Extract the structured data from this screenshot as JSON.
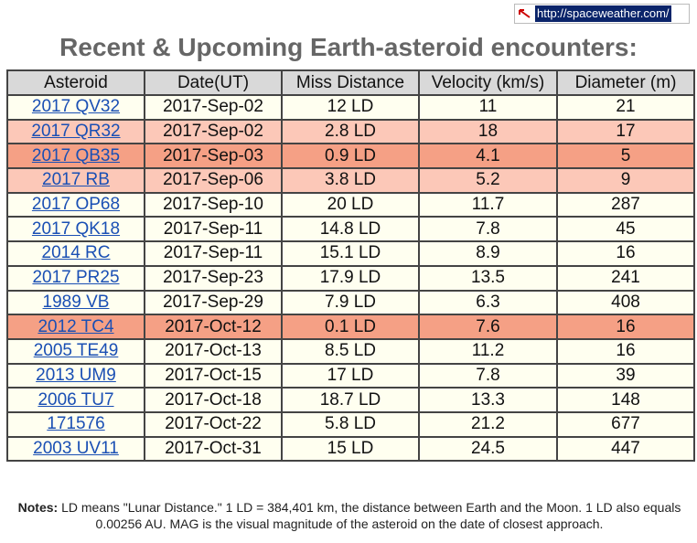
{
  "url": "http://spaceweather.com/",
  "title": "Recent & Upcoming Earth-asteroid encounters:",
  "table": {
    "headers": [
      "Asteroid",
      "Date(UT)",
      "Miss Distance",
      "Velocity (km/s)",
      "Diameter (m)"
    ],
    "rows": [
      [
        "2017 QV32",
        "2017-Sep-02",
        "12 LD",
        "11",
        "21"
      ],
      [
        "2017 QR32",
        "2017-Sep-02",
        "2.8 LD",
        "18",
        "17"
      ],
      [
        "2017 QB35",
        "2017-Sep-03",
        "0.9 LD",
        "4.1",
        "5"
      ],
      [
        "2017 RB",
        "2017-Sep-06",
        "3.8 LD",
        "5.2",
        "9"
      ],
      [
        "2017 OP68",
        "2017-Sep-10",
        "20 LD",
        "11.7",
        "287"
      ],
      [
        "2017 QK18",
        "2017-Sep-11",
        "14.8 LD",
        "7.8",
        "45"
      ],
      [
        "2014 RC",
        "2017-Sep-11",
        "15.1 LD",
        "8.9",
        "16"
      ],
      [
        "2017 PR25",
        "2017-Sep-23",
        "17.9 LD",
        "13.5",
        "241"
      ],
      [
        "1989 VB",
        "2017-Sep-29",
        "7.9 LD",
        "6.3",
        "408"
      ],
      [
        "2012 TC4",
        "2017-Oct-12",
        "0.1 LD",
        "7.6",
        "16"
      ],
      [
        "2005 TE49",
        "2017-Oct-13",
        "8.5 LD",
        "11.2",
        "16"
      ],
      [
        "2013 UM9",
        "2017-Oct-15",
        "17 LD",
        "7.8",
        "39"
      ],
      [
        "2006 TU7",
        "2017-Oct-18",
        "18.7 LD",
        "13.3",
        "148"
      ],
      [
        "171576",
        "2017-Oct-22",
        "5.8 LD",
        "21.2",
        "677"
      ],
      [
        "2003 UV11",
        "2017-Oct-31",
        "15 LD",
        "24.5",
        "447"
      ]
    ],
    "row_colors": [
      "#fffff0",
      "#fcc8b8",
      "#f5a085",
      "#fcc8b8",
      "#fffff0",
      "#fffff0",
      "#fffff0",
      "#fffff0",
      "#fffff0",
      "#f5a085",
      "#fffff0",
      "#fffff0",
      "#fffff0",
      "#fffff0",
      "#fffff0"
    ]
  },
  "notes": {
    "label": "Notes:",
    "text": "LD means \"Lunar Distance.\" 1 LD = 384,401 km, the distance between Earth and the Moon. 1 LD also equals 0.00256 AU. MAG is the visual magnitude of the asteroid on the date of closest approach."
  }
}
